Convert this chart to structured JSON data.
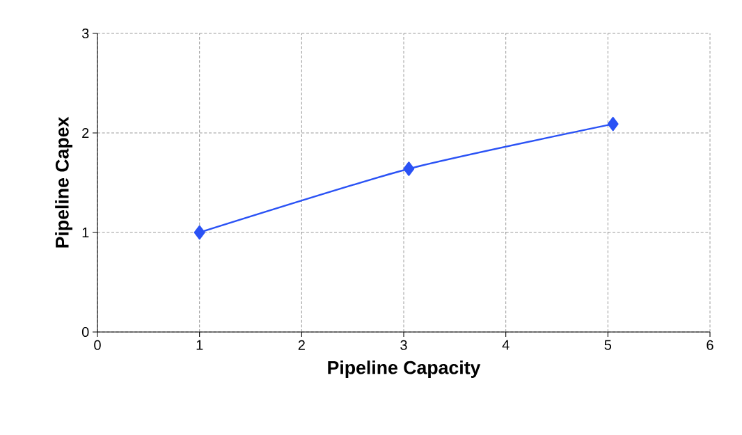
{
  "chart_data": {
    "type": "line",
    "xlabel": "Pipeline Capacity",
    "ylabel": "Pipeline Capex",
    "x": [
      1,
      3.05,
      5.05
    ],
    "series": [
      {
        "color": "#2a52f5",
        "values": [
          1,
          1.64,
          2.09
        ]
      }
    ],
    "xlim": [
      0,
      6
    ],
    "xticks": [
      0,
      1,
      2,
      3,
      4,
      5,
      6
    ],
    "ylim": [
      0,
      3
    ],
    "yticks": [
      0,
      1,
      2,
      3
    ],
    "grid": true,
    "marker": "diamond",
    "line_style": "solid"
  }
}
